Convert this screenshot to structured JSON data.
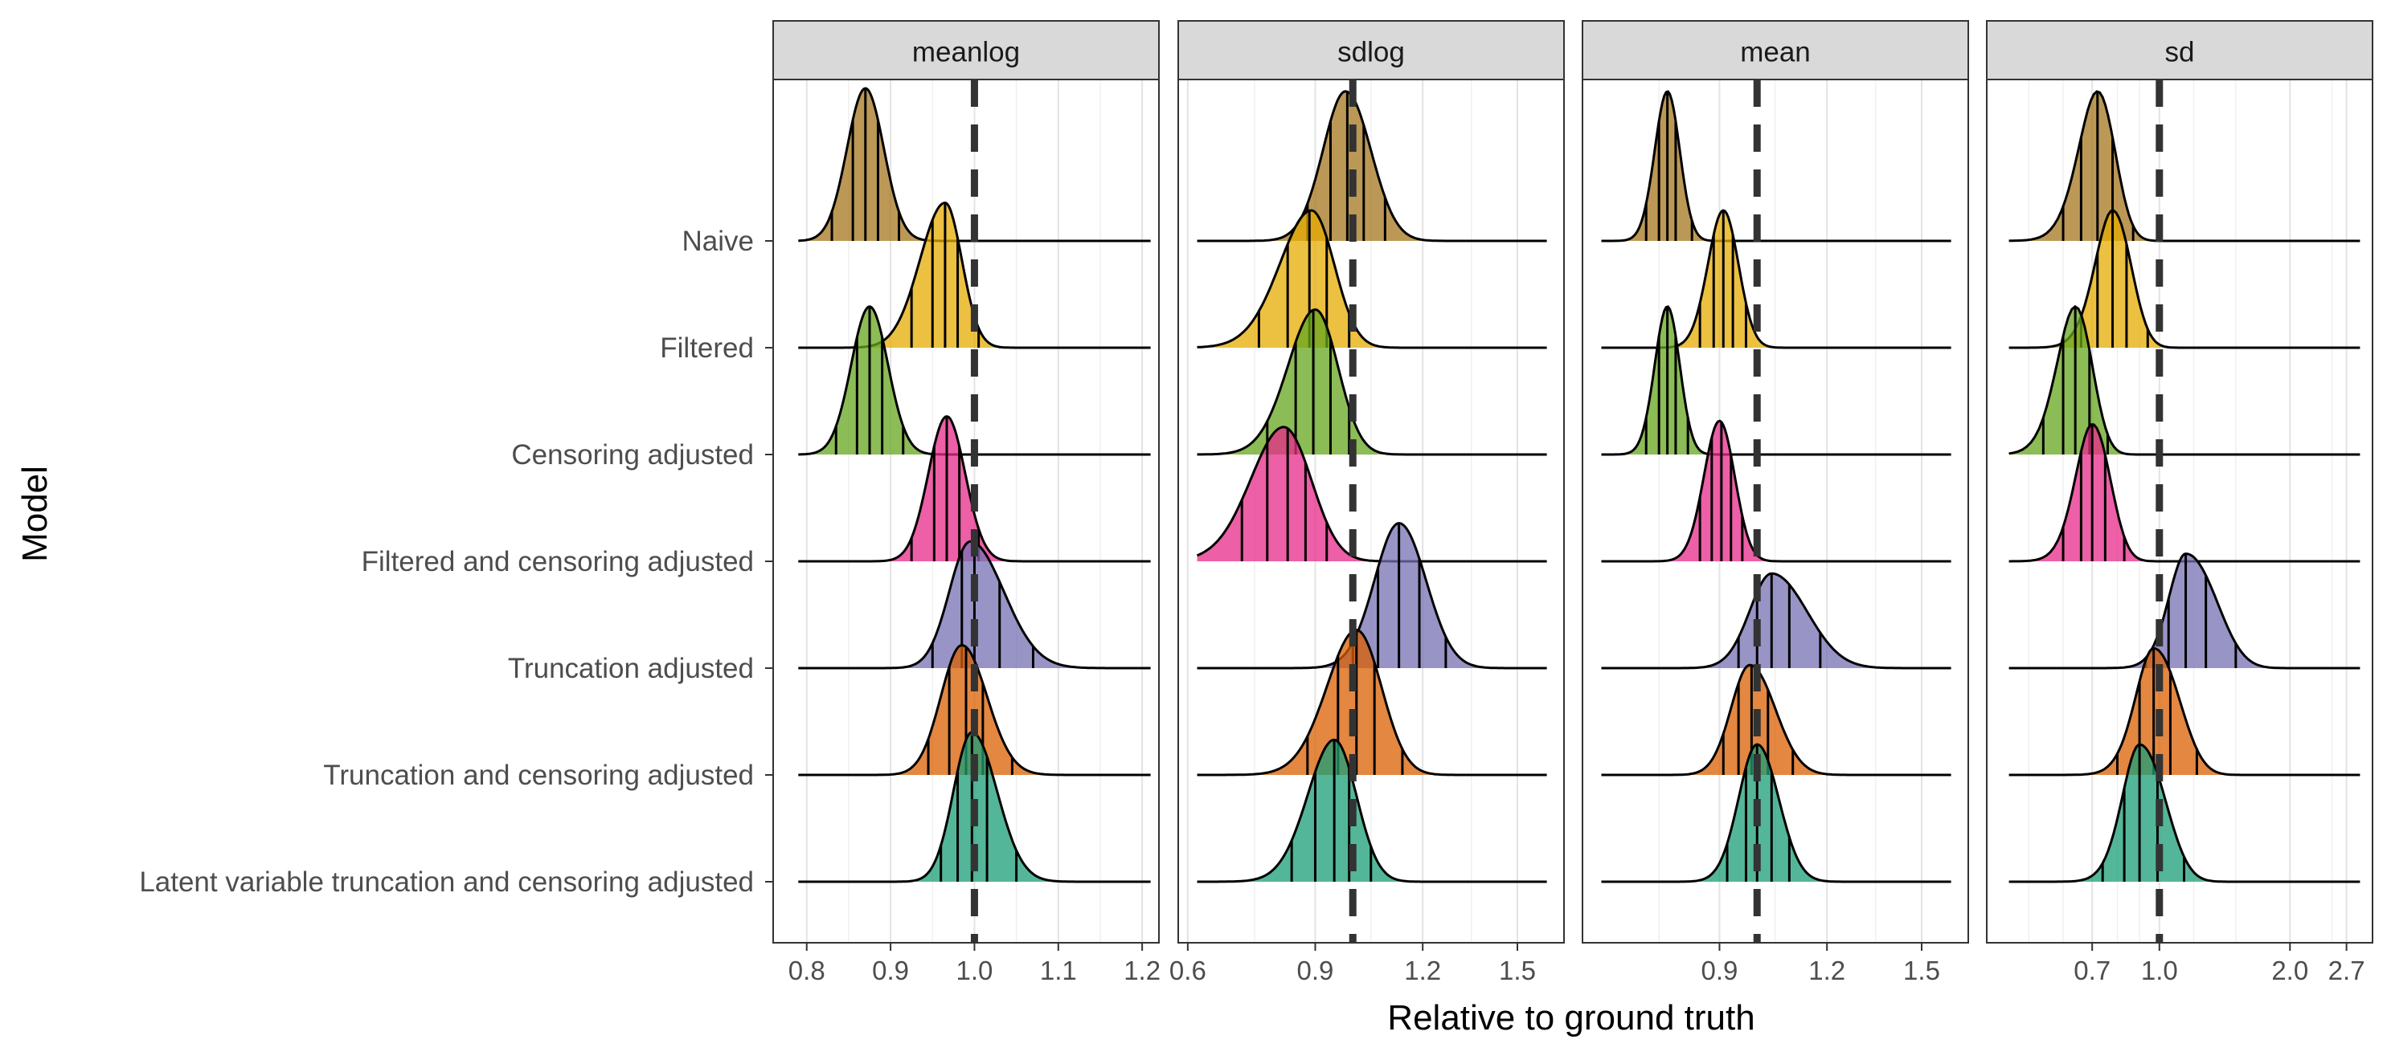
{
  "y_axis_title": "Model",
  "x_axis_title": "Relative to ground truth",
  "reference_line_value": 1.0,
  "models": [
    "Naive",
    "Filtered",
    "Censoring adjusted",
    "Filtered and censoring adjusted",
    "Truncation adjusted",
    "Truncation and censoring adjusted",
    "Latent variable truncation and censoring adjusted"
  ],
  "colors": {
    "Naive": "#A6761D",
    "Filtered": "#E6AB02",
    "Censoring adjusted": "#66A61E",
    "Filtered and censoring adjusted": "#E7298A",
    "Truncation adjusted": "#7570B3",
    "Truncation and censoring adjusted": "#D95F02",
    "Latent variable truncation and censoring adjusted": "#1B9E77"
  },
  "chart_data": [
    {
      "type": "ridgeline",
      "facet": "meanlog",
      "x_scale": "linear",
      "xlim": [
        0.76,
        1.22
      ],
      "x_ticks": [
        0.8,
        0.9,
        1.0,
        1.1,
        1.2
      ],
      "x_tick_labels": [
        "0.8",
        "0.9",
        "1.0",
        "1.1",
        "1.2"
      ],
      "minor_x_ticks": [
        0.85,
        0.95,
        1.05,
        1.15
      ],
      "support": [
        0.79,
        1.21
      ],
      "series": [
        {
          "model": "Naive",
          "mode": 0.87,
          "sd_left": 0.022,
          "sd_right": 0.022,
          "height": 1.0,
          "quantile_lines": [
            0.83,
            0.855,
            0.87,
            0.885,
            0.91
          ]
        },
        {
          "model": "Filtered",
          "mode": 0.965,
          "sd_left": 0.03,
          "sd_right": 0.02,
          "height": 0.95,
          "quantile_lines": [
            0.925,
            0.95,
            0.965,
            0.98,
            1.005
          ]
        },
        {
          "model": "Censoring adjusted",
          "mode": 0.875,
          "sd_left": 0.022,
          "sd_right": 0.022,
          "height": 0.97,
          "quantile_lines": [
            0.835,
            0.86,
            0.875,
            0.89,
            0.915
          ]
        },
        {
          "model": "Filtered and censoring adjusted",
          "mode": 0.967,
          "sd_left": 0.022,
          "sd_right": 0.022,
          "height": 0.95,
          "quantile_lines": [
            0.925,
            0.952,
            0.967,
            0.982,
            1.005
          ]
        },
        {
          "model": "Truncation adjusted",
          "mode": 0.995,
          "sd_left": 0.025,
          "sd_right": 0.04,
          "height": 0.83,
          "quantile_lines": [
            0.95,
            0.985,
            1.0,
            1.03,
            1.07
          ]
        },
        {
          "model": "Truncation and censoring adjusted",
          "mode": 0.985,
          "sd_left": 0.025,
          "sd_right": 0.03,
          "height": 0.85,
          "quantile_lines": [
            0.945,
            0.97,
            0.99,
            1.01,
            1.045
          ]
        },
        {
          "model": "Latent variable truncation and censoring adjusted",
          "mode": 0.997,
          "sd_left": 0.022,
          "sd_right": 0.03,
          "height": 0.98,
          "quantile_lines": [
            0.96,
            0.98,
            0.997,
            1.015,
            1.05
          ]
        }
      ]
    },
    {
      "type": "ridgeline",
      "facet": "sdlog",
      "x_scale": "sqrt",
      "xlim": [
        0.58,
        1.66
      ],
      "x_ticks": [
        0.6,
        0.9,
        1.2,
        1.5
      ],
      "x_tick_labels": [
        "0.6",
        "0.9",
        "1.2",
        "1.5"
      ],
      "minor_x_ticks": [
        0.75,
        1.05,
        1.35
      ],
      "support": [
        0.62,
        1.6
      ],
      "series": [
        {
          "model": "Naive",
          "mode": 0.98,
          "sd_left": 0.06,
          "sd_right": 0.07,
          "height": 0.98,
          "quantile_lines": [
            0.88,
            0.94,
            0.985,
            1.03,
            1.09
          ]
        },
        {
          "model": "Filtered",
          "mode": 0.89,
          "sd_left": 0.08,
          "sd_right": 0.06,
          "height": 0.9,
          "quantile_lines": [
            0.76,
            0.83,
            0.885,
            0.93,
            0.99
          ]
        },
        {
          "model": "Censoring adjusted",
          "mode": 0.9,
          "sd_left": 0.07,
          "sd_right": 0.06,
          "height": 0.95,
          "quantile_lines": [
            0.78,
            0.85,
            0.895,
            0.94,
            0.99
          ]
        },
        {
          "model": "Filtered and censoring adjusted",
          "mode": 0.82,
          "sd_left": 0.08,
          "sd_right": 0.07,
          "height": 0.88,
          "quantile_lines": [
            0.72,
            0.78,
            0.83,
            0.875,
            0.93
          ]
        },
        {
          "model": "Truncation adjusted",
          "mode": 1.13,
          "sd_left": 0.07,
          "sd_right": 0.08,
          "height": 0.95,
          "quantile_lines": [
            1.0,
            1.07,
            1.13,
            1.19,
            1.27
          ]
        },
        {
          "model": "Truncation and censoring adjusted",
          "mode": 1.01,
          "sd_left": 0.08,
          "sd_right": 0.07,
          "height": 0.95,
          "quantile_lines": [
            0.88,
            0.96,
            1.01,
            1.06,
            1.14
          ]
        },
        {
          "model": "Latent variable truncation and censoring adjusted",
          "mode": 0.95,
          "sd_left": 0.07,
          "sd_right": 0.06,
          "height": 0.93,
          "quantile_lines": [
            0.84,
            0.9,
            0.95,
            0.99,
            1.05
          ]
        }
      ]
    },
    {
      "type": "ridgeline",
      "facet": "mean",
      "x_scale": "sqrt",
      "xlim": [
        0.58,
        1.66
      ],
      "x_ticks": [
        0.9,
        1.2,
        1.5
      ],
      "x_tick_labels": [
        "0.9",
        "1.2",
        "1.5"
      ],
      "minor_x_ticks": [
        0.75,
        1.05,
        1.35
      ],
      "support": [
        0.62,
        1.6
      ],
      "series": [
        {
          "model": "Naive",
          "mode": 0.77,
          "sd_left": 0.03,
          "sd_right": 0.03,
          "height": 0.98,
          "quantile_lines": [
            0.72,
            0.75,
            0.77,
            0.79,
            0.83
          ]
        },
        {
          "model": "Filtered",
          "mode": 0.91,
          "sd_left": 0.04,
          "sd_right": 0.04,
          "height": 0.9,
          "quantile_lines": [
            0.85,
            0.885,
            0.91,
            0.935,
            0.97
          ]
        },
        {
          "model": "Censoring adjusted",
          "mode": 0.77,
          "sd_left": 0.03,
          "sd_right": 0.03,
          "height": 0.97,
          "quantile_lines": [
            0.72,
            0.75,
            0.77,
            0.79,
            0.82
          ]
        },
        {
          "model": "Filtered and censoring adjusted",
          "mode": 0.9,
          "sd_left": 0.04,
          "sd_right": 0.04,
          "height": 0.92,
          "quantile_lines": [
            0.85,
            0.88,
            0.905,
            0.93,
            0.96
          ]
        },
        {
          "model": "Truncation adjusted",
          "mode": 1.04,
          "sd_left": 0.06,
          "sd_right": 0.1,
          "height": 0.62,
          "quantile_lines": [
            0.95,
            1.0,
            1.04,
            1.09,
            1.18
          ]
        },
        {
          "model": "Truncation and censoring adjusted",
          "mode": 0.98,
          "sd_left": 0.05,
          "sd_right": 0.07,
          "height": 0.72,
          "quantile_lines": [
            0.91,
            0.95,
            0.985,
            1.03,
            1.1
          ]
        },
        {
          "model": "Latent variable truncation and censoring adjusted",
          "mode": 1.0,
          "sd_left": 0.05,
          "sd_right": 0.06,
          "height": 0.9,
          "quantile_lines": [
            0.92,
            0.97,
            1.0,
            1.04,
            1.09
          ]
        }
      ]
    },
    {
      "type": "ridgeline",
      "facet": "sd",
      "x_scale": "log",
      "xlim": [
        0.4,
        3.1
      ],
      "x_ticks": [
        0.7,
        1.0,
        2.0,
        2.7
      ],
      "x_tick_labels": [
        "0.7",
        "1.0",
        "2.0",
        "2.7"
      ],
      "minor_x_ticks": [
        0.5,
        0.6,
        0.8,
        0.9,
        1.2,
        1.5,
        2.5
      ],
      "support": [
        0.45,
        2.9
      ],
      "series": [
        {
          "model": "Naive",
          "mode": 0.72,
          "sd_left": 0.07,
          "sd_right": 0.07,
          "height": 0.98,
          "quantile_lines": [
            0.6,
            0.66,
            0.72,
            0.78,
            0.87
          ]
        },
        {
          "model": "Filtered",
          "mode": 0.78,
          "sd_left": 0.07,
          "sd_right": 0.08,
          "height": 0.9,
          "quantile_lines": [
            0.66,
            0.72,
            0.78,
            0.84,
            0.94
          ]
        },
        {
          "model": "Censoring adjusted",
          "mode": 0.64,
          "sd_left": 0.06,
          "sd_right": 0.06,
          "height": 0.97,
          "quantile_lines": [
            0.54,
            0.6,
            0.64,
            0.69,
            0.76
          ]
        },
        {
          "model": "Filtered and censoring adjusted",
          "mode": 0.7,
          "sd_left": 0.06,
          "sd_right": 0.07,
          "height": 0.9,
          "quantile_lines": [
            0.6,
            0.66,
            0.7,
            0.75,
            0.83
          ]
        },
        {
          "model": "Truncation adjusted",
          "mode": 1.15,
          "sd_left": 0.1,
          "sd_right": 0.2,
          "height": 0.75,
          "quantile_lines": [
            0.93,
            1.05,
            1.15,
            1.28,
            1.5
          ]
        },
        {
          "model": "Truncation and censoring adjusted",
          "mode": 0.97,
          "sd_left": 0.09,
          "sd_right": 0.14,
          "height": 0.83,
          "quantile_lines": [
            0.8,
            0.9,
            0.97,
            1.06,
            1.22
          ]
        },
        {
          "model": "Latent variable truncation and censoring adjusted",
          "mode": 0.9,
          "sd_left": 0.08,
          "sd_right": 0.13,
          "height": 0.9,
          "quantile_lines": [
            0.74,
            0.83,
            0.9,
            0.99,
            1.14
          ]
        }
      ]
    }
  ]
}
